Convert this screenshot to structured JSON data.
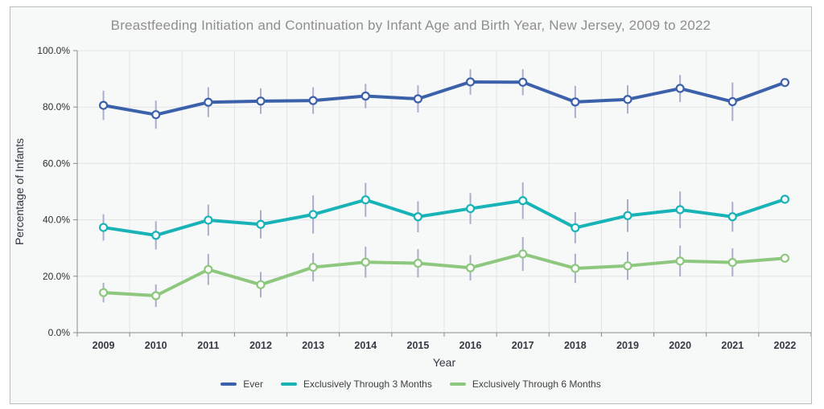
{
  "figure": {
    "title": "Breastfeeding Initiation and Continuation by Infant Age and Birth Year, New Jersey, 2009 to 2022"
  },
  "chart_data": {
    "type": "line",
    "title": "Breastfeeding Initiation and Continuation by Infant Age and Birth Year, New Jersey, 2009 to 2022",
    "xlabel": "Year",
    "ylabel": "Percentage of Infants",
    "ylim": [
      0,
      100
    ],
    "ytick_interval": 20,
    "ytick_labels": [
      "0.0%",
      "20.0%",
      "40.0%",
      "60.0%",
      "80.0%",
      "100.0%"
    ],
    "grid": true,
    "legend_position": "bottom",
    "marker": "open-circle",
    "error_bars": true,
    "error_bar_color": "#a9aecb",
    "categories": [
      "2009",
      "2010",
      "2011",
      "2012",
      "2013",
      "2014",
      "2015",
      "2016",
      "2017",
      "2018",
      "2019",
      "2020",
      "2021",
      "2022"
    ],
    "series": [
      {
        "name": "Ever",
        "color": "#3c61ab",
        "values": [
          80.6,
          77.3,
          81.7,
          82.1,
          82.3,
          83.9,
          82.9,
          88.9,
          88.8,
          81.8,
          82.7,
          86.6,
          81.9,
          88.7
        ],
        "ci_half_width": [
          5.2,
          5.0,
          5.3,
          4.5,
          4.7,
          4.3,
          4.8,
          4.5,
          4.6,
          5.7,
          5.0,
          4.8,
          6.8,
          null
        ]
      },
      {
        "name": "Exclusively Through 3 Months",
        "color": "#17b3b7",
        "values": [
          37.3,
          34.5,
          39.9,
          38.4,
          41.9,
          47.1,
          41.1,
          44.0,
          46.8,
          37.2,
          41.5,
          43.6,
          41.1,
          47.3
        ],
        "ci_half_width": [
          4.7,
          5.0,
          5.5,
          5.0,
          6.8,
          6.0,
          5.5,
          5.5,
          6.5,
          5.5,
          5.8,
          6.5,
          5.3,
          null
        ]
      },
      {
        "name": "Exclusively Through 6 Months",
        "color": "#8dc87e",
        "values": [
          14.2,
          13.1,
          22.4,
          17.0,
          23.2,
          25.0,
          24.6,
          23.0,
          27.9,
          22.8,
          23.7,
          25.4,
          24.9,
          26.4
        ],
        "ci_half_width": [
          3.5,
          4.0,
          5.5,
          4.5,
          5.0,
          5.5,
          5.0,
          4.5,
          6.0,
          5.2,
          5.0,
          5.5,
          5.0,
          null
        ]
      }
    ]
  }
}
